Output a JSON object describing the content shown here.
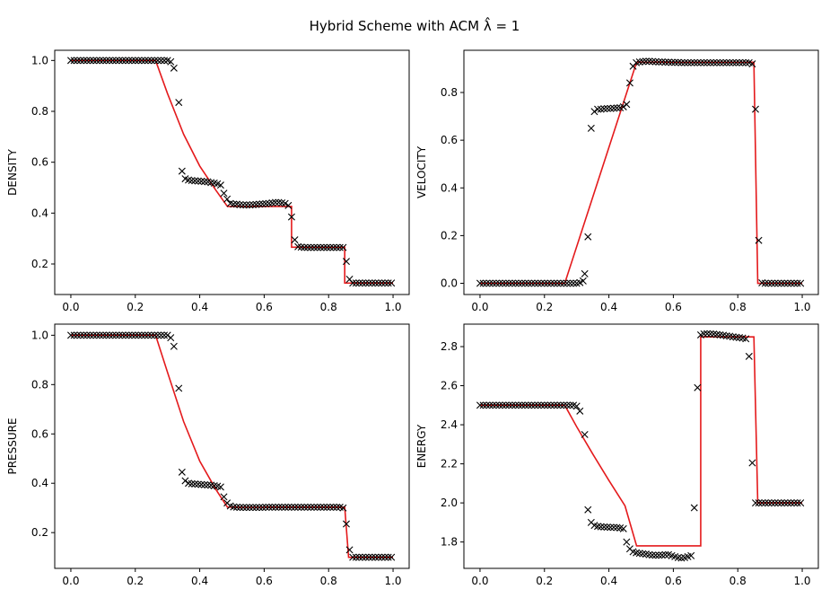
{
  "figure": {
    "title": "Hybrid Scheme with ACM λ̂ = 1"
  },
  "colors": {
    "exact": "#e41a1c",
    "numerical": "#000000",
    "axis": "#000000"
  },
  "chart_data": [
    {
      "type": "line",
      "ylabel": "DENSITY",
      "xlabel": "",
      "xlim": [
        -0.05,
        1.05
      ],
      "ylim": [
        0.08,
        1.04
      ],
      "xticks": [
        "0.0",
        "0.2",
        "0.4",
        "0.6",
        "0.8",
        "1.0"
      ],
      "yticks": [
        "0.2",
        "0.4",
        "0.6",
        "0.8",
        "1.0"
      ],
      "series": [
        {
          "style": "line",
          "x": [
            0,
            0.263,
            0.3,
            0.35,
            0.4,
            0.45,
            0.486,
            0.5,
            0.55,
            0.6,
            0.685,
            0.685,
            0.85,
            0.85,
            1.0
          ],
          "y": [
            1.0,
            1.0,
            0.87,
            0.71,
            0.585,
            0.49,
            0.426,
            0.426,
            0.426,
            0.426,
            0.426,
            0.266,
            0.266,
            0.125,
            0.125
          ]
        },
        {
          "style": "marker",
          "x": [
            0,
            0.01,
            0.02,
            0.03,
            0.04,
            0.05,
            0.06,
            0.07,
            0.08,
            0.09,
            0.1,
            0.11,
            0.12,
            0.13,
            0.14,
            0.15,
            0.16,
            0.17,
            0.18,
            0.19,
            0.2,
            0.21,
            0.22,
            0.23,
            0.24,
            0.25,
            0.26,
            0.27,
            0.28,
            0.29,
            0.3,
            0.31,
            0.32,
            0.335,
            0.345,
            0.355,
            0.365,
            0.375,
            0.385,
            0.395,
            0.405,
            0.415,
            0.425,
            0.435,
            0.445,
            0.455,
            0.465,
            0.475,
            0.485,
            0.495,
            0.505,
            0.515,
            0.525,
            0.535,
            0.545,
            0.555,
            0.565,
            0.575,
            0.585,
            0.595,
            0.605,
            0.615,
            0.625,
            0.635,
            0.645,
            0.655,
            0.665,
            0.675,
            0.685,
            0.695,
            0.705,
            0.715,
            0.725,
            0.735,
            0.745,
            0.755,
            0.765,
            0.775,
            0.785,
            0.795,
            0.805,
            0.815,
            0.825,
            0.835,
            0.845,
            0.855,
            0.865,
            0.875,
            0.885,
            0.895,
            0.905,
            0.915,
            0.925,
            0.935,
            0.945,
            0.955,
            0.965,
            0.975,
            0.985,
            0.995
          ],
          "y": [
            1,
            1,
            1,
            1,
            1,
            1,
            1,
            1,
            1,
            1,
            1,
            1,
            1,
            1,
            1,
            1,
            1,
            1,
            1,
            1,
            1,
            1,
            1,
            1,
            1,
            1,
            1,
            1,
            1,
            1,
            1,
            0.995,
            0.97,
            0.835,
            0.565,
            0.535,
            0.53,
            0.528,
            0.527,
            0.526,
            0.525,
            0.524,
            0.523,
            0.52,
            0.518,
            0.515,
            0.51,
            0.478,
            0.455,
            0.438,
            0.435,
            0.435,
            0.433,
            0.432,
            0.432,
            0.432,
            0.433,
            0.434,
            0.435,
            0.436,
            0.437,
            0.438,
            0.44,
            0.442,
            0.442,
            0.44,
            0.438,
            0.43,
            0.385,
            0.295,
            0.268,
            0.266,
            0.265,
            0.265,
            0.265,
            0.265,
            0.265,
            0.265,
            0.265,
            0.265,
            0.265,
            0.265,
            0.265,
            0.265,
            0.265,
            0.21,
            0.14,
            0.125,
            0.125,
            0.125,
            0.125,
            0.125,
            0.125,
            0.125,
            0.125,
            0.125,
            0.125,
            0.125,
            0.125,
            0.125
          ]
        }
      ]
    },
    {
      "type": "line",
      "ylabel": "VELOCITY",
      "xlabel": "",
      "xlim": [
        -0.05,
        1.05
      ],
      "ylim": [
        -0.047,
        0.977
      ],
      "xticks": [
        "0.0",
        "0.2",
        "0.4",
        "0.6",
        "0.8",
        "1.0"
      ],
      "yticks": [
        "0.0",
        "0.2",
        "0.4",
        "0.6",
        "0.8"
      ],
      "series": [
        {
          "style": "line",
          "x": [
            0,
            0.263,
            0.486,
            0.85,
            0.85,
            0.862,
            1.0
          ],
          "y": [
            0,
            0,
            0.927,
            0.927,
            0.927,
            0,
            0
          ]
        },
        {
          "style": "marker",
          "x": [
            0,
            0.01,
            0.02,
            0.03,
            0.04,
            0.05,
            0.06,
            0.07,
            0.08,
            0.09,
            0.1,
            0.11,
            0.12,
            0.13,
            0.14,
            0.15,
            0.16,
            0.17,
            0.18,
            0.19,
            0.2,
            0.21,
            0.22,
            0.23,
            0.24,
            0.25,
            0.26,
            0.27,
            0.28,
            0.29,
            0.3,
            0.31,
            0.32,
            0.325,
            0.335,
            0.345,
            0.355,
            0.365,
            0.375,
            0.385,
            0.395,
            0.405,
            0.415,
            0.425,
            0.435,
            0.445,
            0.455,
            0.465,
            0.475,
            0.485,
            0.495,
            0.505,
            0.515,
            0.525,
            0.535,
            0.545,
            0.555,
            0.565,
            0.575,
            0.585,
            0.595,
            0.605,
            0.615,
            0.625,
            0.635,
            0.645,
            0.655,
            0.665,
            0.675,
            0.685,
            0.695,
            0.705,
            0.715,
            0.725,
            0.735,
            0.745,
            0.755,
            0.765,
            0.775,
            0.785,
            0.795,
            0.805,
            0.815,
            0.825,
            0.835,
            0.845,
            0.855,
            0.865,
            0.875,
            0.885,
            0.895,
            0.905,
            0.915,
            0.925,
            0.935,
            0.945,
            0.955,
            0.965,
            0.975,
            0.985,
            0.995
          ],
          "y": [
            0,
            0,
            0,
            0,
            0,
            0,
            0,
            0,
            0,
            0,
            0,
            0,
            0,
            0,
            0,
            0,
            0,
            0,
            0,
            0,
            0,
            0,
            0,
            0,
            0,
            0,
            0,
            0,
            0,
            0,
            0,
            0.003,
            0.01,
            0.04,
            0.195,
            0.65,
            0.72,
            0.73,
            0.73,
            0.732,
            0.733,
            0.733,
            0.734,
            0.735,
            0.736,
            0.74,
            0.75,
            0.84,
            0.91,
            0.925,
            0.928,
            0.93,
            0.931,
            0.931,
            0.93,
            0.929,
            0.928,
            0.928,
            0.927,
            0.927,
            0.926,
            0.926,
            0.926,
            0.925,
            0.925,
            0.925,
            0.925,
            0.925,
            0.925,
            0.925,
            0.925,
            0.925,
            0.925,
            0.925,
            0.925,
            0.925,
            0.925,
            0.925,
            0.925,
            0.925,
            0.925,
            0.925,
            0.925,
            0.925,
            0.925,
            0.92,
            0.73,
            0.18,
            0.002,
            0,
            0,
            0,
            0,
            0,
            0,
            0,
            0,
            0,
            0,
            0,
            0
          ]
        }
      ]
    },
    {
      "type": "line",
      "ylabel": "PRESSURE",
      "xlabel": "",
      "xlim": [
        -0.05,
        1.05
      ],
      "ylim": [
        0.055,
        1.045
      ],
      "xticks": [
        "0.0",
        "0.2",
        "0.4",
        "0.6",
        "0.8",
        "1.0"
      ],
      "yticks": [
        "0.2",
        "0.4",
        "0.6",
        "0.8",
        "1.0"
      ],
      "series": [
        {
          "style": "line",
          "x": [
            0,
            0.263,
            0.3,
            0.35,
            0.4,
            0.45,
            0.486,
            0.5,
            0.6,
            0.7,
            0.85,
            0.85,
            0.862,
            1.0
          ],
          "y": [
            1.0,
            1.0,
            0.85,
            0.65,
            0.49,
            0.375,
            0.303,
            0.303,
            0.303,
            0.303,
            0.303,
            0.303,
            0.1,
            0.1
          ]
        },
        {
          "style": "marker",
          "x": [
            0,
            0.01,
            0.02,
            0.03,
            0.04,
            0.05,
            0.06,
            0.07,
            0.08,
            0.09,
            0.1,
            0.11,
            0.12,
            0.13,
            0.14,
            0.15,
            0.16,
            0.17,
            0.18,
            0.19,
            0.2,
            0.21,
            0.22,
            0.23,
            0.24,
            0.25,
            0.26,
            0.27,
            0.28,
            0.29,
            0.3,
            0.31,
            0.32,
            0.335,
            0.345,
            0.355,
            0.365,
            0.375,
            0.385,
            0.395,
            0.405,
            0.415,
            0.425,
            0.435,
            0.445,
            0.455,
            0.465,
            0.475,
            0.485,
            0.495,
            0.505,
            0.515,
            0.525,
            0.535,
            0.545,
            0.555,
            0.565,
            0.575,
            0.585,
            0.595,
            0.605,
            0.615,
            0.625,
            0.635,
            0.645,
            0.655,
            0.665,
            0.675,
            0.685,
            0.695,
            0.705,
            0.715,
            0.725,
            0.735,
            0.745,
            0.755,
            0.765,
            0.775,
            0.785,
            0.795,
            0.805,
            0.815,
            0.825,
            0.835,
            0.845,
            0.855,
            0.865,
            0.875,
            0.885,
            0.895,
            0.905,
            0.915,
            0.925,
            0.935,
            0.945,
            0.955,
            0.965,
            0.975,
            0.985,
            0.995
          ],
          "y": [
            1,
            1,
            1,
            1,
            1,
            1,
            1,
            1,
            1,
            1,
            1,
            1,
            1,
            1,
            1,
            1,
            1,
            1,
            1,
            1,
            1,
            1,
            1,
            1,
            1,
            1,
            1,
            1,
            1,
            1,
            1,
            0.99,
            0.955,
            0.785,
            0.445,
            0.41,
            0.4,
            0.398,
            0.397,
            0.396,
            0.395,
            0.394,
            0.393,
            0.392,
            0.39,
            0.388,
            0.385,
            0.345,
            0.32,
            0.308,
            0.304,
            0.303,
            0.302,
            0.302,
            0.302,
            0.302,
            0.302,
            0.302,
            0.302,
            0.302,
            0.303,
            0.303,
            0.303,
            0.303,
            0.303,
            0.303,
            0.303,
            0.303,
            0.303,
            0.303,
            0.303,
            0.303,
            0.303,
            0.303,
            0.303,
            0.303,
            0.303,
            0.303,
            0.303,
            0.303,
            0.303,
            0.303,
            0.303,
            0.303,
            0.3,
            0.235,
            0.13,
            0.1,
            0.1,
            0.1,
            0.1,
            0.1,
            0.1,
            0.1,
            0.1,
            0.1,
            0.1,
            0.1,
            0.1,
            0.1
          ]
        }
      ]
    },
    {
      "type": "line",
      "ylabel": "ENERGY",
      "xlabel": "",
      "xlim": [
        -0.05,
        1.05
      ],
      "ylim": [
        1.665,
        2.915
      ],
      "xticks": [
        "0.0",
        "0.2",
        "0.4",
        "0.6",
        "0.8",
        "1.0"
      ],
      "yticks": [
        "1.8",
        "2.0",
        "2.2",
        "2.4",
        "2.6",
        "2.8"
      ],
      "series": [
        {
          "style": "line",
          "x": [
            0,
            0.263,
            0.3,
            0.35,
            0.4,
            0.45,
            0.486,
            0.55,
            0.6,
            0.685,
            0.685,
            0.7,
            0.8,
            0.85,
            0.85,
            0.862,
            1.0
          ],
          "y": [
            2.5,
            2.5,
            2.39,
            2.25,
            2.115,
            1.985,
            1.78,
            1.78,
            1.78,
            1.78,
            2.85,
            2.85,
            2.85,
            2.85,
            2.85,
            2.0,
            2.0
          ]
        },
        {
          "style": "marker",
          "x": [
            0,
            0.01,
            0.02,
            0.03,
            0.04,
            0.05,
            0.06,
            0.07,
            0.08,
            0.09,
            0.1,
            0.11,
            0.12,
            0.13,
            0.14,
            0.15,
            0.16,
            0.17,
            0.18,
            0.19,
            0.2,
            0.21,
            0.22,
            0.23,
            0.24,
            0.25,
            0.26,
            0.27,
            0.28,
            0.29,
            0.3,
            0.31,
            0.325,
            0.335,
            0.345,
            0.355,
            0.365,
            0.375,
            0.385,
            0.395,
            0.405,
            0.415,
            0.425,
            0.435,
            0.445,
            0.455,
            0.465,
            0.475,
            0.485,
            0.495,
            0.505,
            0.515,
            0.525,
            0.535,
            0.545,
            0.555,
            0.565,
            0.575,
            0.585,
            0.595,
            0.605,
            0.615,
            0.625,
            0.635,
            0.645,
            0.655,
            0.665,
            0.675,
            0.685,
            0.695,
            0.705,
            0.715,
            0.725,
            0.735,
            0.745,
            0.755,
            0.765,
            0.775,
            0.785,
            0.795,
            0.805,
            0.815,
            0.825,
            0.835,
            0.845,
            0.855,
            0.865,
            0.875,
            0.885,
            0.895,
            0.905,
            0.915,
            0.925,
            0.935,
            0.945,
            0.955,
            0.965,
            0.975,
            0.985,
            0.995
          ],
          "y": [
            2.5,
            2.5,
            2.5,
            2.5,
            2.5,
            2.5,
            2.5,
            2.5,
            2.5,
            2.5,
            2.5,
            2.5,
            2.5,
            2.5,
            2.5,
            2.5,
            2.5,
            2.5,
            2.5,
            2.5,
            2.5,
            2.5,
            2.5,
            2.5,
            2.5,
            2.5,
            2.5,
            2.5,
            2.5,
            2.5,
            2.495,
            2.47,
            2.35,
            1.965,
            1.9,
            1.885,
            1.88,
            1.878,
            1.877,
            1.876,
            1.875,
            1.875,
            1.874,
            1.872,
            1.868,
            1.8,
            1.765,
            1.75,
            1.745,
            1.742,
            1.74,
            1.738,
            1.735,
            1.733,
            1.732,
            1.732,
            1.733,
            1.735,
            1.735,
            1.73,
            1.725,
            1.72,
            1.718,
            1.72,
            1.725,
            1.73,
            1.975,
            2.59,
            2.86,
            2.865,
            2.866,
            2.865,
            2.864,
            2.862,
            2.86,
            2.858,
            2.855,
            2.853,
            2.85,
            2.848,
            2.846,
            2.844,
            2.84,
            2.75,
            2.205,
            2.0,
            2.0,
            2.0,
            2.0,
            2.0,
            2.0,
            2.0,
            2.0,
            2.0,
            2.0,
            2.0,
            2.0,
            2.0,
            2.0,
            2.0
          ]
        }
      ]
    }
  ]
}
